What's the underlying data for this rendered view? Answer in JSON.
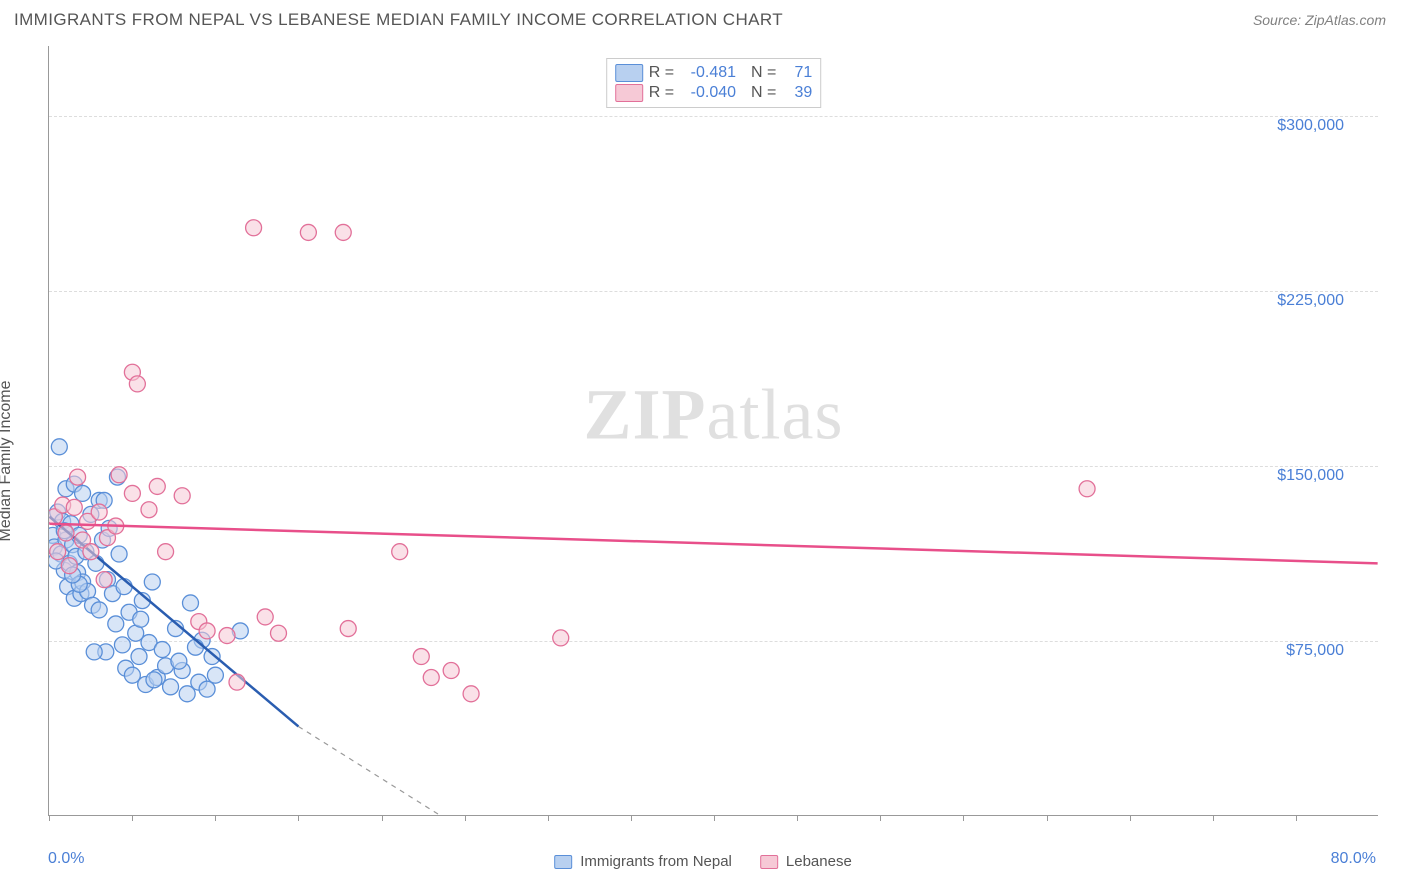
{
  "header": {
    "title": "IMMIGRANTS FROM NEPAL VS LEBANESE MEDIAN FAMILY INCOME CORRELATION CHART",
    "source": "Source: ZipAtlas.com"
  },
  "watermark": "ZIPatlas",
  "chart": {
    "type": "scatter",
    "background_color": "#ffffff",
    "grid_color": "#dddddd",
    "axis_color": "#999999",
    "y_axis_label": "Median Family Income",
    "x_min_label": "0.0%",
    "x_max_label": "80.0%",
    "xlim": [
      0,
      80
    ],
    "ylim": [
      0,
      330000
    ],
    "y_ticks": [
      {
        "value": 75000,
        "label": "$75,000"
      },
      {
        "value": 150000,
        "label": "$150,000"
      },
      {
        "value": 225000,
        "label": "$225,000"
      },
      {
        "value": 300000,
        "label": "$300,000"
      }
    ],
    "x_tick_positions": [
      0,
      5,
      10,
      15,
      20,
      25,
      30,
      35,
      40,
      45,
      50,
      55,
      60,
      65,
      70,
      75
    ],
    "label_fontsize": 16,
    "tick_color": "#4a7fd6",
    "series": [
      {
        "id": "nepal",
        "name": "Immigrants from Nepal",
        "color_fill": "#b8d0f0",
        "color_stroke": "#5a8fd8",
        "line_color": "#2a5db0",
        "marker_radius": 8,
        "fill_opacity": 0.55,
        "R": "-0.481",
        "N": "71",
        "regression": {
          "x1": 0,
          "y1": 128000,
          "x2": 15,
          "y2": 38000,
          "dash_x2": 23.5,
          "dash_y2": 0
        },
        "points": [
          [
            0.2,
            120000
          ],
          [
            0.3,
            115000
          ],
          [
            0.5,
            130000
          ],
          [
            0.6,
            158000
          ],
          [
            0.7,
            112000
          ],
          [
            0.8,
            126000
          ],
          [
            0.9,
            105000
          ],
          [
            1.0,
            118000
          ],
          [
            1.0,
            140000
          ],
          [
            1.1,
            98000
          ],
          [
            1.2,
            108000
          ],
          [
            1.3,
            125000
          ],
          [
            1.4,
            116000
          ],
          [
            1.5,
            93000
          ],
          [
            1.5,
            142000
          ],
          [
            1.6,
            111000
          ],
          [
            1.7,
            104000
          ],
          [
            1.8,
            120000
          ],
          [
            1.9,
            95000
          ],
          [
            2.0,
            138000
          ],
          [
            2.0,
            100000
          ],
          [
            2.2,
            113000
          ],
          [
            2.3,
            96000
          ],
          [
            2.5,
            129000
          ],
          [
            2.6,
            90000
          ],
          [
            2.8,
            108000
          ],
          [
            3.0,
            135000
          ],
          [
            3.0,
            88000
          ],
          [
            3.2,
            118000
          ],
          [
            3.4,
            70000
          ],
          [
            3.5,
            101000
          ],
          [
            3.6,
            123000
          ],
          [
            3.8,
            95000
          ],
          [
            4.0,
            82000
          ],
          [
            4.2,
            112000
          ],
          [
            4.4,
            73000
          ],
          [
            4.5,
            98000
          ],
          [
            4.6,
            63000
          ],
          [
            4.8,
            87000
          ],
          [
            5.0,
            60000
          ],
          [
            5.2,
            78000
          ],
          [
            5.4,
            68000
          ],
          [
            5.6,
            92000
          ],
          [
            5.8,
            56000
          ],
          [
            6.0,
            74000
          ],
          [
            6.2,
            100000
          ],
          [
            6.5,
            59000
          ],
          [
            6.8,
            71000
          ],
          [
            7.0,
            64000
          ],
          [
            7.3,
            55000
          ],
          [
            7.6,
            80000
          ],
          [
            8.0,
            62000
          ],
          [
            8.3,
            52000
          ],
          [
            8.5,
            91000
          ],
          [
            9.0,
            57000
          ],
          [
            9.2,
            75000
          ],
          [
            9.5,
            54000
          ],
          [
            9.8,
            68000
          ],
          [
            10.0,
            60000
          ],
          [
            4.1,
            145000
          ],
          [
            1.8,
            99000
          ],
          [
            2.7,
            70000
          ],
          [
            3.3,
            135000
          ],
          [
            0.4,
            109000
          ],
          [
            0.9,
            122000
          ],
          [
            1.4,
            103000
          ],
          [
            5.5,
            84000
          ],
          [
            6.3,
            58000
          ],
          [
            7.8,
            66000
          ],
          [
            8.8,
            72000
          ],
          [
            11.5,
            79000
          ]
        ]
      },
      {
        "id": "lebanese",
        "name": "Lebanese",
        "color_fill": "#f6c9d6",
        "color_stroke": "#e27099",
        "line_color": "#e84f8a",
        "marker_radius": 8,
        "fill_opacity": 0.55,
        "R": "-0.040",
        "N": "39",
        "regression": {
          "x1": 0,
          "y1": 125000,
          "x2": 80,
          "y2": 108000
        },
        "points": [
          [
            0.3,
            128000
          ],
          [
            0.5,
            113000
          ],
          [
            0.8,
            133000
          ],
          [
            1.0,
            121000
          ],
          [
            1.2,
            107000
          ],
          [
            1.5,
            132000
          ],
          [
            1.7,
            145000
          ],
          [
            2.0,
            118000
          ],
          [
            2.3,
            126000
          ],
          [
            2.5,
            113000
          ],
          [
            3.0,
            130000
          ],
          [
            3.3,
            101000
          ],
          [
            3.5,
            119000
          ],
          [
            4.0,
            124000
          ],
          [
            4.2,
            146000
          ],
          [
            5.0,
            138000
          ],
          [
            5.0,
            190000
          ],
          [
            5.3,
            185000
          ],
          [
            6.0,
            131000
          ],
          [
            6.5,
            141000
          ],
          [
            7.0,
            113000
          ],
          [
            8.0,
            137000
          ],
          [
            9.0,
            83000
          ],
          [
            9.5,
            79000
          ],
          [
            10.7,
            77000
          ],
          [
            11.3,
            57000
          ],
          [
            12.3,
            252000
          ],
          [
            13.0,
            85000
          ],
          [
            13.8,
            78000
          ],
          [
            15.6,
            250000
          ],
          [
            17.7,
            250000
          ],
          [
            18.0,
            80000
          ],
          [
            21.1,
            113000
          ],
          [
            22.4,
            68000
          ],
          [
            23.0,
            59000
          ],
          [
            24.2,
            62000
          ],
          [
            25.4,
            52000
          ],
          [
            30.8,
            76000
          ],
          [
            62.5,
            140000
          ]
        ]
      }
    ],
    "bottom_legend": [
      {
        "swatch_fill": "#b8d0f0",
        "swatch_stroke": "#5a8fd8",
        "label": "Immigrants from Nepal"
      },
      {
        "swatch_fill": "#f6c9d6",
        "swatch_stroke": "#e27099",
        "label": "Lebanese"
      }
    ]
  }
}
